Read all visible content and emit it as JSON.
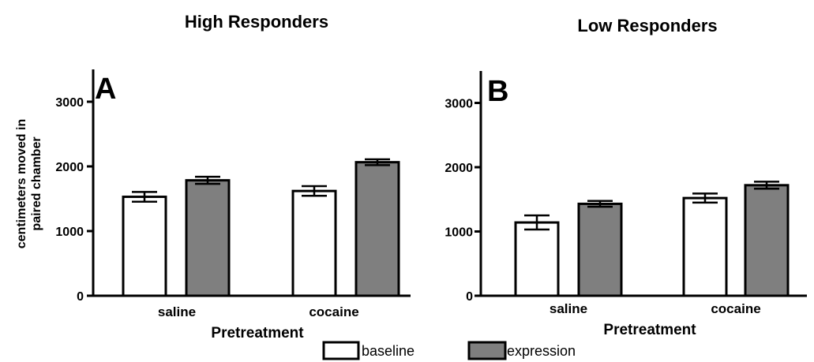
{
  "chart_data": [
    {
      "type": "bar",
      "panel": "A",
      "title": "High Responders",
      "xlabel": "Pretreatment",
      "ylabel": [
        "centimeters moved in",
        "paired chamber"
      ],
      "categories": [
        "saline",
        "cocaine"
      ],
      "series": [
        {
          "name": "baseline",
          "color": "#ffffff",
          "values": [
            1530,
            1620
          ],
          "errors": [
            75,
            75
          ]
        },
        {
          "name": "expression",
          "color": "#7f7f7f",
          "values": [
            1785,
            2065
          ],
          "errors": [
            55,
            45
          ]
        }
      ],
      "ylim": [
        0,
        3500
      ],
      "yticks": [
        0,
        1000,
        2000,
        3000
      ],
      "grid": false
    },
    {
      "type": "bar",
      "panel": "B",
      "title": "Low Responders",
      "xlabel": "Pretreatment",
      "ylabel": [
        "",
        ""
      ],
      "categories": [
        "saline",
        "cocaine"
      ],
      "series": [
        {
          "name": "baseline",
          "color": "#ffffff",
          "values": [
            1140,
            1520
          ],
          "errors": [
            110,
            70
          ]
        },
        {
          "name": "expression",
          "color": "#7f7f7f",
          "values": [
            1430,
            1720
          ],
          "errors": [
            45,
            55
          ]
        }
      ],
      "ylim": [
        0,
        3500
      ],
      "yticks": [
        0,
        1000,
        2000,
        3000
      ],
      "grid": false
    }
  ],
  "legend": {
    "placement": "bottom-center",
    "items": [
      {
        "label": "baseline",
        "color": "#ffffff"
      },
      {
        "label": "expression",
        "color": "#7f7f7f"
      }
    ]
  }
}
